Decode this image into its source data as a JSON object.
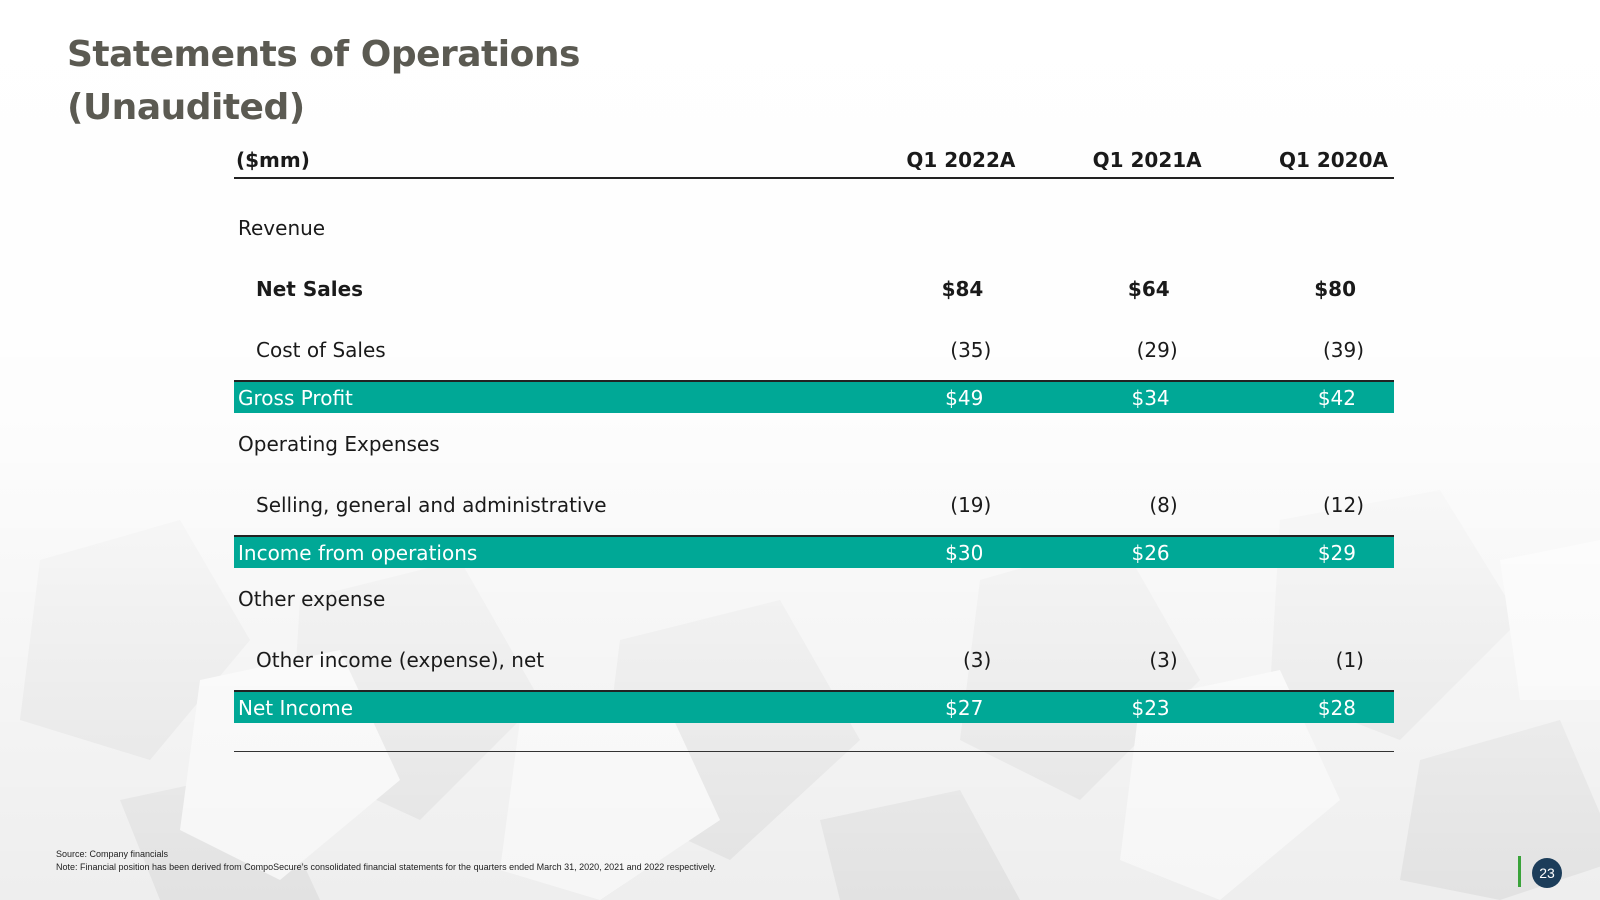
{
  "title": {
    "line1": "Statements of Operations",
    "line2": "(Unaudited)"
  },
  "table": {
    "headers": [
      "($mm)",
      "Q1 2022A",
      "Q1 2021A",
      "Q1 2020A"
    ],
    "revenue_label": "Revenue",
    "net_sales": {
      "label": "Net Sales",
      "values": [
        "$84",
        "$64",
        "$80"
      ]
    },
    "cost_of_sales": {
      "label": "Cost of Sales",
      "values": [
        "(35)",
        "(29)",
        "(39)"
      ]
    },
    "gross_profit": {
      "label": "Gross Profit",
      "values": [
        "$49",
        "$34",
        "$42"
      ]
    },
    "operating_expenses_label": "Operating Expenses",
    "sga": {
      "label": "Selling, general and administrative",
      "values": [
        "(19)",
        "(8)",
        "(12)"
      ]
    },
    "income_from_operations": {
      "label": "Income from operations",
      "values": [
        "$30",
        "$26",
        "$29"
      ]
    },
    "other_expense_label": "Other expense",
    "other_income": {
      "label": "Other income (expense), net",
      "values": [
        "(3)",
        "(3)",
        "(1)"
      ]
    },
    "net_income": {
      "label": "Net Income",
      "values": [
        "$27",
        "$23",
        "$28"
      ]
    }
  },
  "footnotes": {
    "source": "Source: Company financials",
    "note": "Note: Financial position has been derived from CompoSecure’s consolidated financial statements for the quarters ended March 31, 2020, 2021 and 2022 respectively."
  },
  "page_number": "23",
  "colors": {
    "title": "#5b5a52",
    "band": "#00a896",
    "page_badge": "#1c3d5a",
    "page_bar": "#3aa33a"
  }
}
